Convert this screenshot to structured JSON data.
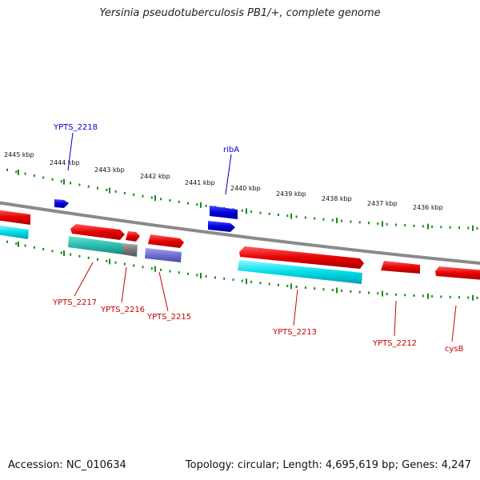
{
  "title": "Yersinia pseudotuberculosis PB1/+, complete genome",
  "footer": {
    "accession": "Accession: NC_010634",
    "summary": "Topology: circular; Length: 4,695,619 bp; Genes: 4,247"
  },
  "colors": {
    "forward_gene": "#e60000",
    "reverse_gene": "#0000dd",
    "cds_cyan": "#00dde8",
    "cds_teal": "#2cbdb0",
    "cds_purple": "#7070d0",
    "cds_grey": "#777777",
    "backbone": "#8a8a8a",
    "ticks": "#1a8a1a",
    "label_red": "#cc0000",
    "label_blue": "#0000cc"
  },
  "scale_labels": [
    "2445 kbp",
    "2444 kbp",
    "2443 kbp",
    "2442 kbp",
    "2441 kbp",
    "2440 kbp",
    "2439 kbp",
    "2438 kbp",
    "2437 kbp",
    "2436 kbp"
  ],
  "gene_labels": [
    {
      "text": "YPTS_2218",
      "strand": "reverse"
    },
    {
      "text": "ribA",
      "strand": "reverse"
    },
    {
      "text": "YPTS_2217",
      "strand": "forward"
    },
    {
      "text": "YPTS_2216",
      "strand": "forward"
    },
    {
      "text": "YPTS_2215",
      "strand": "forward"
    },
    {
      "text": "YPTS_2213",
      "strand": "forward"
    },
    {
      "text": "YPTS_2212",
      "strand": "forward"
    },
    {
      "text": "cysB",
      "strand": "forward"
    }
  ]
}
